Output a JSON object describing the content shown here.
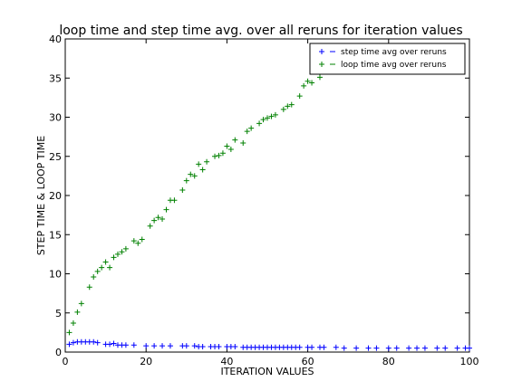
{
  "chart_data": {
    "type": "scatter",
    "title": "loop time and step time avg. over all reruns for iteration values",
    "xlabel": "ITERATION VALUES",
    "ylabel": "STEP TIME & LOOP TIME",
    "xlim": [
      0,
      100
    ],
    "ylim": [
      0,
      40
    ],
    "xticks": [
      0,
      20,
      40,
      60,
      80,
      100
    ],
    "yticks": [
      0,
      5,
      10,
      15,
      20,
      25,
      30,
      35,
      40
    ],
    "grid": false,
    "legend_position": "top-right",
    "series": [
      {
        "name": "step time avg over reruns",
        "color": "#0000ff",
        "marker": "+",
        "points": [
          [
            1,
            1.0
          ],
          [
            2,
            1.2
          ],
          [
            3,
            1.3
          ],
          [
            4,
            1.3
          ],
          [
            5,
            1.3
          ],
          [
            6,
            1.3
          ],
          [
            7,
            1.3
          ],
          [
            8,
            1.2
          ],
          [
            10,
            1.0
          ],
          [
            11,
            1.0
          ],
          [
            12,
            1.1
          ],
          [
            13,
            0.9
          ],
          [
            14,
            0.9
          ],
          [
            15,
            0.9
          ],
          [
            17,
            0.9
          ],
          [
            20,
            0.8
          ],
          [
            22,
            0.8
          ],
          [
            24,
            0.8
          ],
          [
            26,
            0.8
          ],
          [
            29,
            0.8
          ],
          [
            30,
            0.8
          ],
          [
            32,
            0.8
          ],
          [
            33,
            0.7
          ],
          [
            34,
            0.7
          ],
          [
            36,
            0.7
          ],
          [
            37,
            0.7
          ],
          [
            38,
            0.7
          ],
          [
            40,
            0.7
          ],
          [
            41,
            0.7
          ],
          [
            42,
            0.7
          ],
          [
            44,
            0.6
          ],
          [
            45,
            0.6
          ],
          [
            46,
            0.6
          ],
          [
            47,
            0.6
          ],
          [
            48,
            0.6
          ],
          [
            49,
            0.6
          ],
          [
            50,
            0.6
          ],
          [
            51,
            0.6
          ],
          [
            52,
            0.6
          ],
          [
            53,
            0.6
          ],
          [
            54,
            0.6
          ],
          [
            55,
            0.6
          ],
          [
            56,
            0.6
          ],
          [
            57,
            0.6
          ],
          [
            58,
            0.6
          ],
          [
            60,
            0.6
          ],
          [
            61,
            0.6
          ],
          [
            63,
            0.6
          ],
          [
            64,
            0.6
          ],
          [
            67,
            0.6
          ],
          [
            69,
            0.5
          ],
          [
            72,
            0.5
          ],
          [
            75,
            0.5
          ],
          [
            77,
            0.5
          ],
          [
            80,
            0.5
          ],
          [
            82,
            0.5
          ],
          [
            85,
            0.5
          ],
          [
            87,
            0.5
          ],
          [
            89,
            0.5
          ],
          [
            92,
            0.5
          ],
          [
            94,
            0.5
          ],
          [
            97,
            0.5
          ],
          [
            99,
            0.5
          ],
          [
            100,
            0.5
          ]
        ]
      },
      {
        "name": "loop time avg over reruns",
        "color": "#008000",
        "marker": "+",
        "points": [
          [
            1,
            2.5
          ],
          [
            2,
            3.7
          ],
          [
            3,
            5.1
          ],
          [
            4,
            6.2
          ],
          [
            6,
            8.3
          ],
          [
            7,
            9.6
          ],
          [
            8,
            10.3
          ],
          [
            9,
            10.8
          ],
          [
            10,
            11.5
          ],
          [
            11,
            10.8
          ],
          [
            12,
            12.1
          ],
          [
            13,
            12.5
          ],
          [
            14,
            12.8
          ],
          [
            15,
            13.2
          ],
          [
            17,
            14.2
          ],
          [
            18,
            13.9
          ],
          [
            19,
            14.4
          ],
          [
            21,
            16.1
          ],
          [
            22,
            16.8
          ],
          [
            23,
            17.2
          ],
          [
            24,
            17.0
          ],
          [
            25,
            18.2
          ],
          [
            26,
            19.4
          ],
          [
            27,
            19.4
          ],
          [
            29,
            20.7
          ],
          [
            30,
            21.9
          ],
          [
            31,
            22.7
          ],
          [
            32,
            22.5
          ],
          [
            33,
            24.0
          ],
          [
            34,
            23.3
          ],
          [
            35,
            24.3
          ],
          [
            37,
            25.0
          ],
          [
            38,
            25.1
          ],
          [
            39,
            25.4
          ],
          [
            40,
            26.3
          ],
          [
            41,
            25.9
          ],
          [
            42,
            27.1
          ],
          [
            44,
            26.7
          ],
          [
            45,
            28.2
          ],
          [
            46,
            28.6
          ],
          [
            48,
            29.2
          ],
          [
            49,
            29.7
          ],
          [
            50,
            29.9
          ],
          [
            51,
            30.1
          ],
          [
            52,
            30.3
          ],
          [
            54,
            31.0
          ],
          [
            55,
            31.4
          ],
          [
            56,
            31.6
          ],
          [
            58,
            32.7
          ],
          [
            59,
            34.0
          ],
          [
            60,
            34.6
          ],
          [
            61,
            34.4
          ],
          [
            63,
            35.1
          ],
          [
            65,
            36.0
          ],
          [
            67,
            37.0
          ]
        ]
      }
    ]
  }
}
